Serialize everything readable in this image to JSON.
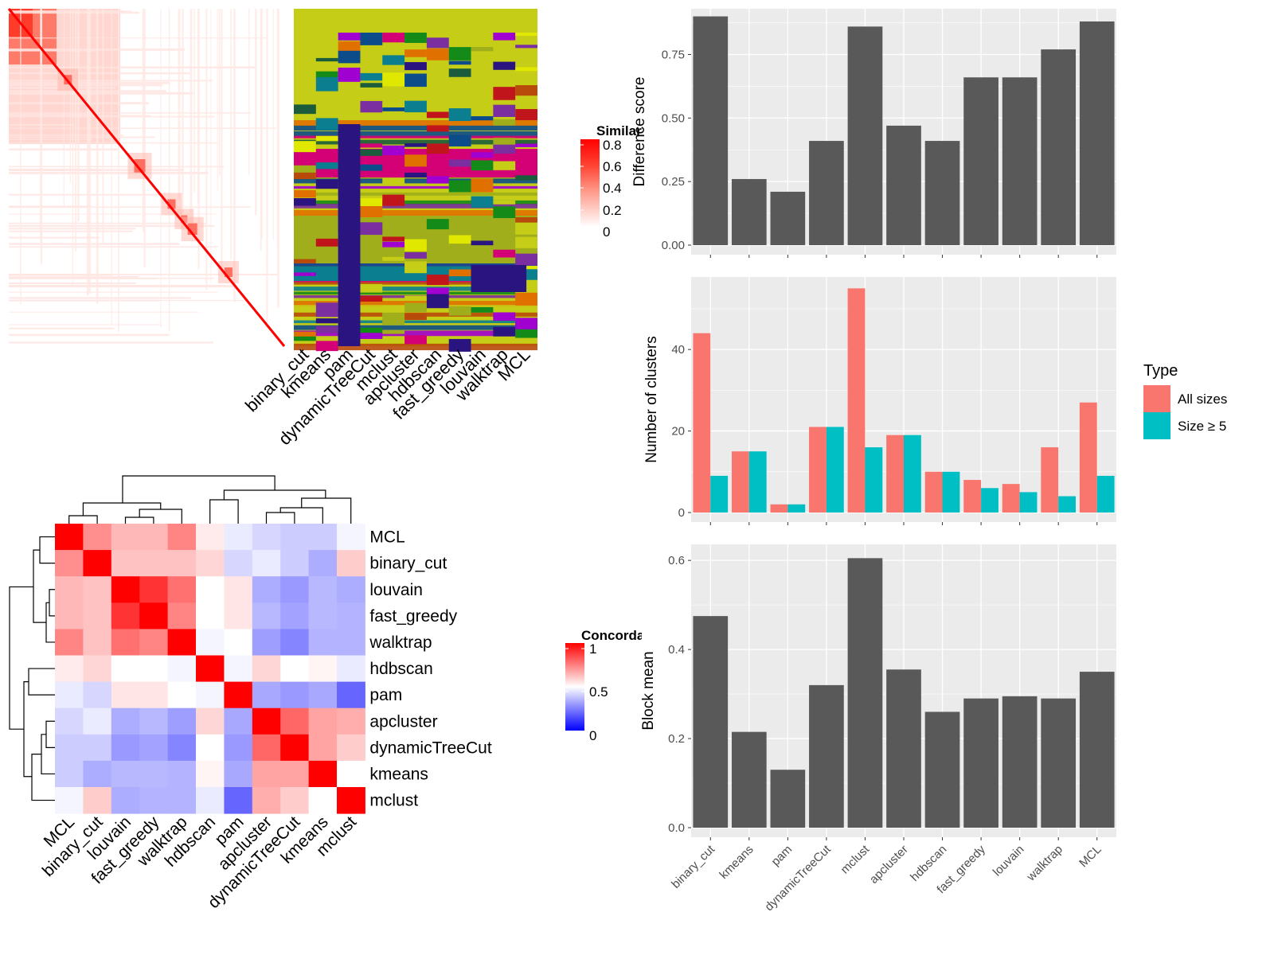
{
  "colors": {
    "bar_gray": "#595959",
    "panel_bg": "#ebebeb",
    "grid": "#ffffff",
    "type_all_sizes": "#F8766D",
    "type_size_ge5": "#00BFC4",
    "heat_high": "#ff0000",
    "heat_mid": "#ffffff",
    "heat_low": "#0000ff"
  },
  "similarity_heatmap": {
    "legend_title": "Similarity",
    "legend_ticks": [
      "0.8",
      "0.6",
      "0.4",
      "0.2",
      "0"
    ]
  },
  "membership_heatmap": {
    "columns": [
      "binary_cut",
      "kmeans",
      "pam",
      "dynamicTreeCut",
      "mclust",
      "apcluster",
      "hdbscan",
      "fast_greedy",
      "louvain",
      "walktrap",
      "MCL"
    ]
  },
  "concordance_heatmap": {
    "legend_title": "Concordance",
    "legend_ticks": [
      "1",
      "0.5",
      "0"
    ],
    "rows": [
      "MCL",
      "binary_cut",
      "louvain",
      "fast_greedy",
      "walktrap",
      "hdbscan",
      "pam",
      "apcluster",
      "dynamicTreeCut",
      "kmeans",
      "mclust"
    ],
    "cols": [
      "MCL",
      "binary_cut",
      "louvain",
      "fast_greedy",
      "walktrap",
      "hdbscan",
      "pam",
      "apcluster",
      "dynamicTreeCut",
      "kmeans",
      "mclust"
    ],
    "values": [
      [
        1.0,
        0.72,
        0.64,
        0.64,
        0.74,
        0.54,
        0.46,
        0.42,
        0.4,
        0.4,
        0.48
      ],
      [
        0.72,
        1.0,
        0.62,
        0.62,
        0.62,
        0.58,
        0.42,
        0.46,
        0.4,
        0.34,
        0.6
      ],
      [
        0.64,
        0.62,
        1.0,
        0.9,
        0.78,
        0.5,
        0.55,
        0.34,
        0.3,
        0.36,
        0.34
      ],
      [
        0.64,
        0.62,
        0.9,
        1.0,
        0.74,
        0.5,
        0.55,
        0.36,
        0.32,
        0.36,
        0.35
      ],
      [
        0.74,
        0.62,
        0.78,
        0.74,
        1.0,
        0.48,
        0.5,
        0.31,
        0.26,
        0.35,
        0.35
      ],
      [
        0.54,
        0.58,
        0.5,
        0.5,
        0.48,
        1.0,
        0.48,
        0.58,
        0.5,
        0.52,
        0.46
      ],
      [
        0.46,
        0.42,
        0.55,
        0.55,
        0.5,
        0.48,
        1.0,
        0.33,
        0.3,
        0.33,
        0.2
      ],
      [
        0.42,
        0.46,
        0.34,
        0.36,
        0.31,
        0.58,
        0.33,
        1.0,
        0.8,
        0.68,
        0.66
      ],
      [
        0.4,
        0.4,
        0.3,
        0.32,
        0.26,
        0.5,
        0.3,
        0.8,
        1.0,
        0.68,
        0.6
      ],
      [
        0.4,
        0.34,
        0.36,
        0.36,
        0.35,
        0.52,
        0.33,
        0.68,
        0.68,
        1.0,
        0.5
      ],
      [
        0.48,
        0.6,
        0.34,
        0.35,
        0.35,
        0.46,
        0.2,
        0.66,
        0.6,
        0.5,
        1.0
      ]
    ]
  },
  "chart_data": [
    {
      "type": "bar",
      "categories": [
        "binary_cut",
        "kmeans",
        "pam",
        "dynamicTreeCut",
        "mclust",
        "apcluster",
        "hdbscan",
        "fast_greedy",
        "louvain",
        "walktrap",
        "MCL"
      ],
      "values": [
        0.9,
        0.26,
        0.21,
        0.41,
        0.86,
        0.47,
        0.41,
        0.66,
        0.66,
        0.77,
        0.88
      ],
      "ylabel": "Difference score",
      "ylim": [
        0,
        0.93
      ],
      "yticks": [
        "0.00",
        "0.25",
        "0.50",
        "0.75"
      ],
      "ytick_values": [
        0,
        0.25,
        0.5,
        0.75
      ],
      "grid": true
    },
    {
      "type": "bar",
      "categories": [
        "binary_cut",
        "kmeans",
        "pam",
        "dynamicTreeCut",
        "mclust",
        "apcluster",
        "hdbscan",
        "fast_greedy",
        "louvain",
        "walktrap",
        "MCL"
      ],
      "series": [
        {
          "name": "All sizes",
          "values": [
            44,
            15,
            2,
            21,
            55,
            19,
            10,
            8,
            7,
            16,
            27
          ]
        },
        {
          "name": "Size ≥ 5",
          "values": [
            9,
            15,
            2,
            21,
            16,
            19,
            10,
            6,
            5,
            4,
            9
          ]
        }
      ],
      "ylabel": "Number of clusters",
      "ylim": [
        0,
        57.8
      ],
      "yticks": [
        "0",
        "20",
        "40"
      ],
      "ytick_values": [
        0,
        20,
        40
      ],
      "legend_title": "Type",
      "legend_position": "right",
      "grid": true
    },
    {
      "type": "bar",
      "categories": [
        "binary_cut",
        "kmeans",
        "pam",
        "dynamicTreeCut",
        "mclust",
        "apcluster",
        "hdbscan",
        "fast_greedy",
        "louvain",
        "walktrap",
        "MCL"
      ],
      "values": [
        0.475,
        0.215,
        0.13,
        0.32,
        0.605,
        0.355,
        0.26,
        0.29,
        0.295,
        0.29,
        0.35
      ],
      "ylabel": "Block mean",
      "ylim": [
        0,
        0.636
      ],
      "yticks": [
        "0.0",
        "0.2",
        "0.4",
        "0.6"
      ],
      "ytick_values": [
        0,
        0.2,
        0.4,
        0.6
      ],
      "grid": true
    }
  ]
}
